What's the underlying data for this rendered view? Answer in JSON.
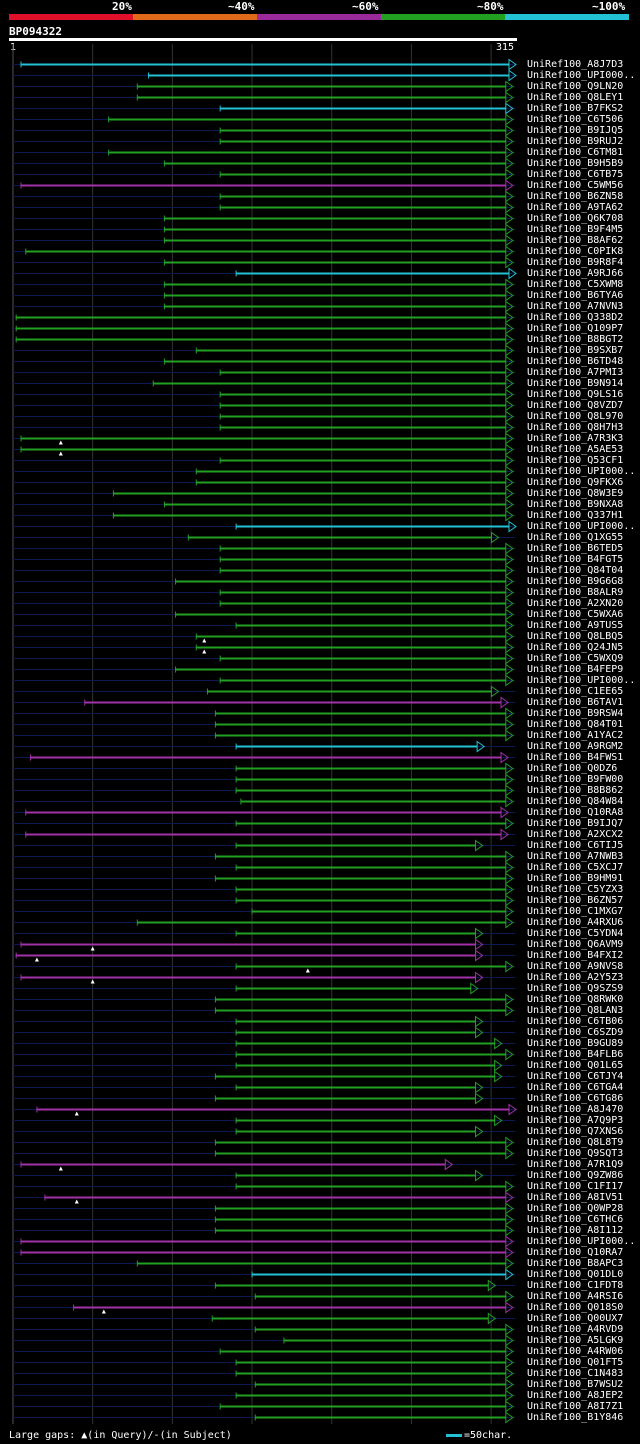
{
  "header": {
    "query_id": "BP094322",
    "start_label": "1",
    "end_label": "315"
  },
  "legend": {
    "items": [
      {
        "label": "20%",
        "color": "#e0102a"
      },
      {
        "label": "~40%",
        "color": "#e06a1a"
      },
      {
        "label": "~60%",
        "color": "#9a2a9a"
      },
      {
        "label": "~80%",
        "color": "#22a022"
      },
      {
        "label": "~100%",
        "color": "#22c1d4"
      }
    ]
  },
  "footer": {
    "gaps_prefix": "Large gaps:",
    "query_note": "(in Query)/",
    "subject_note": "(in Subject)",
    "scale_text": "=50char."
  },
  "chart_data": {
    "type": "alignment",
    "query_length": 315,
    "colors": {
      "cyan": "#22c1d4",
      "green": "#22a022",
      "purple": "#a032a8",
      "background_line": "#0b1a55",
      "grid": "#333333"
    },
    "hits": [
      {
        "label": "UniRef100_A8J7D3",
        "start": 5,
        "end": 315,
        "color": "cyan"
      },
      {
        "label": "UniRef100_UPI000..",
        "start": 85,
        "end": 315,
        "color": "cyan"
      },
      {
        "label": "UniRef100_Q9LN20",
        "start": 78,
        "end": 313,
        "color": "green"
      },
      {
        "label": "UniRef100_Q8LEY1",
        "start": 78,
        "end": 313,
        "color": "green"
      },
      {
        "label": "UniRef100_B7FKS2",
        "start": 130,
        "end": 313,
        "color": "cyan"
      },
      {
        "label": "UniRef100_C6T506",
        "start": 60,
        "end": 313,
        "color": "green"
      },
      {
        "label": "UniRef100_B9IJQ5",
        "start": 130,
        "end": 313,
        "color": "green"
      },
      {
        "label": "UniRef100_B9RUJ2",
        "start": 130,
        "end": 313,
        "color": "green"
      },
      {
        "label": "UniRef100_C6TM81",
        "start": 60,
        "end": 313,
        "color": "green"
      },
      {
        "label": "UniRef100_B9H5B9",
        "start": 95,
        "end": 313,
        "color": "green"
      },
      {
        "label": "UniRef100_C6TB75",
        "start": 130,
        "end": 313,
        "color": "green"
      },
      {
        "label": "UniRef100_C5WM56",
        "start": 5,
        "end": 313,
        "color": "purple"
      },
      {
        "label": "UniRef100_B6ZN58",
        "start": 130,
        "end": 313,
        "color": "green"
      },
      {
        "label": "UniRef100_A9TA62",
        "start": 130,
        "end": 313,
        "color": "green"
      },
      {
        "label": "UniRef100_Q6K708",
        "start": 95,
        "end": 313,
        "color": "green"
      },
      {
        "label": "UniRef100_B9F4M5",
        "start": 95,
        "end": 313,
        "color": "green"
      },
      {
        "label": "UniRef100_B8AF62",
        "start": 95,
        "end": 313,
        "color": "green"
      },
      {
        "label": "UniRef100_C0PIK8",
        "start": 8,
        "end": 313,
        "color": "green"
      },
      {
        "label": "UniRef100_B9R8F4",
        "start": 95,
        "end": 313,
        "color": "green"
      },
      {
        "label": "UniRef100_A9RJ66",
        "start": 140,
        "end": 315,
        "color": "cyan"
      },
      {
        "label": "UniRef100_C5XWM8",
        "start": 95,
        "end": 313,
        "color": "green"
      },
      {
        "label": "UniRef100_B6TYA6",
        "start": 95,
        "end": 313,
        "color": "green"
      },
      {
        "label": "UniRef100_A7NVN3",
        "start": 95,
        "end": 313,
        "color": "green"
      },
      {
        "label": "UniRef100_Q338D2",
        "start": 2,
        "end": 313,
        "color": "green"
      },
      {
        "label": "UniRef100_Q109P7",
        "start": 2,
        "end": 313,
        "color": "green"
      },
      {
        "label": "UniRef100_B8BGT2",
        "start": 2,
        "end": 313,
        "color": "green"
      },
      {
        "label": "UniRef100_B9SXB7",
        "start": 115,
        "end": 313,
        "color": "green"
      },
      {
        "label": "UniRef100_B6TD48",
        "start": 95,
        "end": 313,
        "color": "green"
      },
      {
        "label": "UniRef100_A7PMI3",
        "start": 130,
        "end": 313,
        "color": "green"
      },
      {
        "label": "UniRef100_B9N914",
        "start": 88,
        "end": 313,
        "color": "green"
      },
      {
        "label": "UniRef100_Q9LS16",
        "start": 130,
        "end": 313,
        "color": "green"
      },
      {
        "label": "UniRef100_Q8VZD7",
        "start": 130,
        "end": 313,
        "color": "green"
      },
      {
        "label": "UniRef100_Q8L970",
        "start": 130,
        "end": 313,
        "color": "green"
      },
      {
        "label": "UniRef100_Q8H7H3",
        "start": 130,
        "end": 313,
        "color": "green"
      },
      {
        "label": "UniRef100_A7R3K3",
        "start": 5,
        "end": 313,
        "color": "green",
        "gap_mark": 30
      },
      {
        "label": "UniRef100_A5AE53",
        "start": 5,
        "end": 313,
        "color": "green",
        "gap_mark": 30
      },
      {
        "label": "UniRef100_Q53CF1",
        "start": 130,
        "end": 313,
        "color": "green"
      },
      {
        "label": "UniRef100_UPI000..",
        "start": 115,
        "end": 313,
        "color": "green"
      },
      {
        "label": "UniRef100_Q9FKX6",
        "start": 115,
        "end": 313,
        "color": "green"
      },
      {
        "label": "UniRef100_Q8W3E9",
        "start": 63,
        "end": 313,
        "color": "green"
      },
      {
        "label": "UniRef100_B9NXA8",
        "start": 95,
        "end": 313,
        "color": "green"
      },
      {
        "label": "UniRef100_Q337H1",
        "start": 63,
        "end": 313,
        "color": "green"
      },
      {
        "label": "UniRef100_UPI000..",
        "start": 140,
        "end": 315,
        "color": "cyan"
      },
      {
        "label": "UniRef100_Q1XG55",
        "start": 110,
        "end": 304,
        "color": "green"
      },
      {
        "label": "UniRef100_B6TED5",
        "start": 130,
        "end": 313,
        "color": "green"
      },
      {
        "label": "UniRef100_B4FGT5",
        "start": 130,
        "end": 313,
        "color": "green"
      },
      {
        "label": "UniRef100_Q84T04",
        "start": 130,
        "end": 313,
        "color": "green"
      },
      {
        "label": "UniRef100_B9G6G8",
        "start": 102,
        "end": 313,
        "color": "green"
      },
      {
        "label": "UniRef100_B8ALR9",
        "start": 130,
        "end": 313,
        "color": "green"
      },
      {
        "label": "UniRef100_A2XN20",
        "start": 130,
        "end": 313,
        "color": "green"
      },
      {
        "label": "UniRef100_C5WXA6",
        "start": 102,
        "end": 313,
        "color": "green"
      },
      {
        "label": "UniRef100_A9TUS5",
        "start": 140,
        "end": 313,
        "color": "green"
      },
      {
        "label": "UniRef100_Q8LBQ5",
        "start": 115,
        "end": 313,
        "color": "green",
        "gap_mark": 120
      },
      {
        "label": "UniRef100_Q24JN5",
        "start": 115,
        "end": 313,
        "color": "green",
        "gap_mark": 120
      },
      {
        "label": "UniRef100_C5WXQ9",
        "start": 130,
        "end": 313,
        "color": "green"
      },
      {
        "label": "UniRef100_B4FEP9",
        "start": 102,
        "end": 313,
        "color": "green"
      },
      {
        "label": "UniRef100_UPI000..",
        "start": 130,
        "end": 313,
        "color": "green"
      },
      {
        "label": "UniRef100_C1EE65",
        "start": 122,
        "end": 304,
        "color": "green"
      },
      {
        "label": "UniRef100_B6TAV1",
        "start": 45,
        "end": 310,
        "color": "purple"
      },
      {
        "label": "UniRef100_B9RSW4",
        "start": 127,
        "end": 313,
        "color": "green"
      },
      {
        "label": "UniRef100_Q84T01",
        "start": 127,
        "end": 313,
        "color": "green"
      },
      {
        "label": "UniRef100_A1YAC2",
        "start": 127,
        "end": 313,
        "color": "green"
      },
      {
        "label": "UniRef100_A9RGM2",
        "start": 140,
        "end": 295,
        "color": "cyan"
      },
      {
        "label": "UniRef100_B4FWS1",
        "start": 11,
        "end": 310,
        "color": "purple"
      },
      {
        "label": "UniRef100_Q0DZ6",
        "start": 140,
        "end": 313,
        "color": "green"
      },
      {
        "label": "UniRef100_B9FW00",
        "start": 140,
        "end": 313,
        "color": "green"
      },
      {
        "label": "UniRef100_B8B862",
        "start": 140,
        "end": 313,
        "color": "green"
      },
      {
        "label": "UniRef100_Q84W84",
        "start": 143,
        "end": 313,
        "color": "green"
      },
      {
        "label": "UniRef100_Q10RA8",
        "start": 8,
        "end": 310,
        "color": "purple"
      },
      {
        "label": "UniRef100_B9IJQ7",
        "start": 140,
        "end": 313,
        "color": "green"
      },
      {
        "label": "UniRef100_A2XCX2",
        "start": 8,
        "end": 310,
        "color": "purple"
      },
      {
        "label": "UniRef100_C6TIJ5",
        "start": 140,
        "end": 294,
        "color": "green"
      },
      {
        "label": "UniRef100_A7NWB3",
        "start": 127,
        "end": 313,
        "color": "green"
      },
      {
        "label": "UniRef100_C5XCJ7",
        "start": 140,
        "end": 313,
        "color": "green"
      },
      {
        "label": "UniRef100_B9HM91",
        "start": 127,
        "end": 313,
        "color": "green"
      },
      {
        "label": "UniRef100_C5YZX3",
        "start": 140,
        "end": 313,
        "color": "green"
      },
      {
        "label": "UniRef100_B6ZN57",
        "start": 140,
        "end": 313,
        "color": "green"
      },
      {
        "label": "UniRef100_C1MXG7",
        "start": 150,
        "end": 313,
        "color": "green"
      },
      {
        "label": "UniRef100_A4RXU6",
        "start": 78,
        "end": 313,
        "color": "green"
      },
      {
        "label": "UniRef100_C5YDN4",
        "start": 140,
        "end": 294,
        "color": "green"
      },
      {
        "label": "UniRef100_Q6AVM9",
        "start": 5,
        "end": 294,
        "color": "purple",
        "gap_mark": 50
      },
      {
        "label": "UniRef100_B4FXI2",
        "start": 2,
        "end": 294,
        "color": "purple",
        "gap_mark": 15
      },
      {
        "label": "UniRef100_A9NVS8",
        "start": 140,
        "end": 313,
        "color": "green",
        "gap_mark": 185
      },
      {
        "label": "UniRef100_A2Y5Z3",
        "start": 5,
        "end": 294,
        "color": "purple",
        "gap_mark": 50
      },
      {
        "label": "UniRef100_Q9SZS9",
        "start": 140,
        "end": 291,
        "color": "green"
      },
      {
        "label": "UniRef100_Q8RWK0",
        "start": 127,
        "end": 313,
        "color": "green"
      },
      {
        "label": "UniRef100_Q8LAN3",
        "start": 127,
        "end": 313,
        "color": "green"
      },
      {
        "label": "UniRef100_C6TB06",
        "start": 140,
        "end": 294,
        "color": "green"
      },
      {
        "label": "UniRef100_C6SZD9",
        "start": 140,
        "end": 294,
        "color": "green"
      },
      {
        "label": "UniRef100_B9GU89",
        "start": 140,
        "end": 306,
        "color": "green"
      },
      {
        "label": "UniRef100_B4FLB6",
        "start": 140,
        "end": 313,
        "color": "green"
      },
      {
        "label": "UniRef100_Q01L65",
        "start": 140,
        "end": 306,
        "color": "green"
      },
      {
        "label": "UniRef100_C6TJY4",
        "start": 127,
        "end": 306,
        "color": "green"
      },
      {
        "label": "UniRef100_C6TGA4",
        "start": 140,
        "end": 294,
        "color": "green"
      },
      {
        "label": "UniRef100_C6TG86",
        "start": 127,
        "end": 294,
        "color": "green"
      },
      {
        "label": "UniRef100_A8J470",
        "start": 15,
        "end": 315,
        "color": "purple",
        "gap_mark": 40
      },
      {
        "label": "UniRef100_A7Q9P3",
        "start": 140,
        "end": 306,
        "color": "green"
      },
      {
        "label": "UniRef100_Q7XNS6",
        "start": 140,
        "end": 294,
        "color": "green"
      },
      {
        "label": "UniRef100_Q8L8T9",
        "start": 127,
        "end": 313,
        "color": "green"
      },
      {
        "label": "UniRef100_Q9SQT3",
        "start": 127,
        "end": 313,
        "color": "green"
      },
      {
        "label": "UniRef100_A7R1Q9",
        "start": 5,
        "end": 275,
        "color": "purple",
        "gap_mark": 30
      },
      {
        "label": "UniRef100_Q9ZW86",
        "start": 140,
        "end": 294,
        "color": "green"
      },
      {
        "label": "UniRef100_C1FI17",
        "start": 140,
        "end": 313,
        "color": "green"
      },
      {
        "label": "UniRef100_A8IV51",
        "start": 20,
        "end": 313,
        "color": "purple",
        "gap_mark": 40
      },
      {
        "label": "UniRef100_Q0WP28",
        "start": 127,
        "end": 313,
        "color": "green"
      },
      {
        "label": "UniRef100_C6THC6",
        "start": 127,
        "end": 313,
        "color": "green"
      },
      {
        "label": "UniRef100_A8I112",
        "start": 127,
        "end": 313,
        "color": "green"
      },
      {
        "label": "UniRef100_UPI000..",
        "start": 5,
        "end": 313,
        "color": "purple"
      },
      {
        "label": "UniRef100_Q10RA7",
        "start": 5,
        "end": 313,
        "color": "purple"
      },
      {
        "label": "UniRef100_B8APC3",
        "start": 78,
        "end": 313,
        "color": "green"
      },
      {
        "label": "UniRef100_Q01DL0",
        "start": 150,
        "end": 313,
        "color": "cyan"
      },
      {
        "label": "UniRef100_C1FDT8",
        "start": 127,
        "end": 302,
        "color": "green"
      },
      {
        "label": "UniRef100_A4RSI6",
        "start": 152,
        "end": 313,
        "color": "green"
      },
      {
        "label": "UniRef100_Q018S0",
        "start": 38,
        "end": 313,
        "color": "purple",
        "gap_mark": 57
      },
      {
        "label": "UniRef100_Q00UX7",
        "start": 125,
        "end": 302,
        "color": "green"
      },
      {
        "label": "UniRef100_A4RVD9",
        "start": 152,
        "end": 313,
        "color": "green"
      },
      {
        "label": "UniRef100_A5LGK9",
        "start": 170,
        "end": 313,
        "color": "green"
      },
      {
        "label": "UniRef100_A4RW06",
        "start": 130,
        "end": 313,
        "color": "green"
      },
      {
        "label": "UniRef100_Q01FT5",
        "start": 140,
        "end": 313,
        "color": "green"
      },
      {
        "label": "UniRef100_C1N483",
        "start": 140,
        "end": 313,
        "color": "green"
      },
      {
        "label": "UniRef100_B7WSU2",
        "start": 152,
        "end": 313,
        "color": "green"
      },
      {
        "label": "UniRef100_A8JEP2",
        "start": 140,
        "end": 313,
        "color": "green"
      },
      {
        "label": "UniRef100_A8I7Z1",
        "start": 130,
        "end": 313,
        "color": "green"
      },
      {
        "label": "UniRef100_B1Y846",
        "start": 152,
        "end": 313,
        "color": "green"
      }
    ]
  }
}
